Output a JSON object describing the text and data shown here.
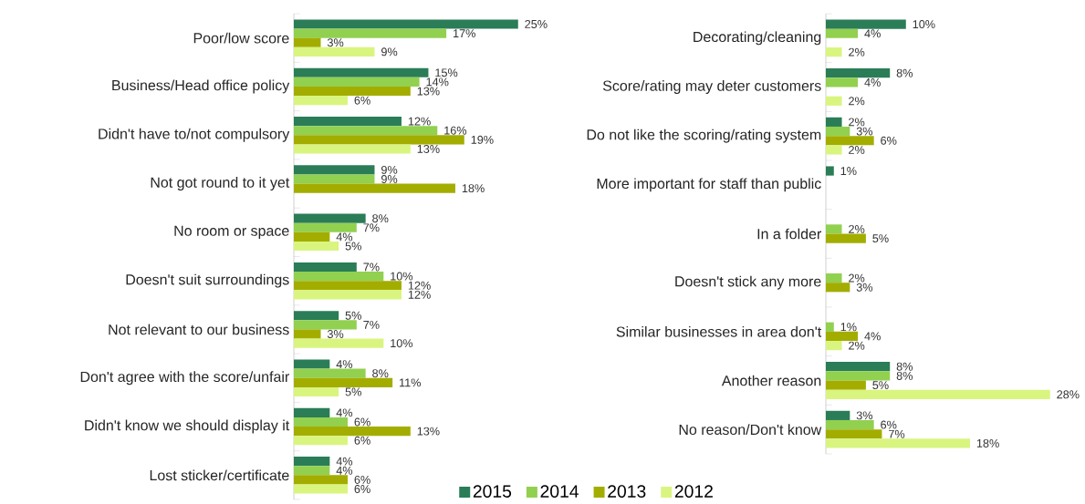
{
  "chart_data": [
    {
      "type": "bar",
      "orientation": "horizontal",
      "legend": "bottom",
      "categories": [
        "Poor/low score",
        "Business/Head office policy",
        "Didn't have to/not compulsory",
        "Not got round to it yet",
        "No room or space",
        "Doesn't suit surroundings",
        "Not relevant to our business",
        "Don't agree with the score/unfair",
        "Didn't know we should display it",
        "Lost sticker/certificate"
      ],
      "series": [
        {
          "name": "2015",
          "color": "#2a7d57",
          "values": [
            25,
            15,
            12,
            9,
            8,
            7,
            5,
            4,
            4,
            4
          ],
          "value_labels": [
            "25%",
            "15%",
            "12%",
            "9%",
            "8%",
            "7%",
            "5%",
            "4%",
            "4%",
            "4%"
          ]
        },
        {
          "name": "2014",
          "color": "#92d050",
          "values": [
            17,
            14,
            16,
            9,
            7,
            10,
            7,
            8,
            6,
            4
          ],
          "value_labels": [
            "17%",
            "14%",
            "16%",
            "9%",
            "7%",
            "10%",
            "7%",
            "8%",
            "6%",
            "4%"
          ]
        },
        {
          "name": "2013",
          "color": "#a3ad00",
          "values": [
            3,
            13,
            19,
            18,
            4,
            12,
            3,
            11,
            13,
            6
          ],
          "value_labels": [
            "3%",
            "13%",
            "19%",
            "18%",
            "4%",
            "12%",
            "3%",
            "11%",
            "13%",
            "6%"
          ]
        },
        {
          "name": "2012",
          "color": "#d9f57f",
          "values": [
            9,
            6,
            13,
            null,
            5,
            12,
            10,
            5,
            6,
            6
          ],
          "value_labels": [
            "9%",
            "6%",
            "13%",
            null,
            "5%",
            "12%",
            "10%",
            "5%",
            "6%",
            "6%"
          ]
        }
      ]
    },
    {
      "type": "bar",
      "orientation": "horizontal",
      "categories": [
        "Decorating/cleaning",
        "Score/rating may deter customers",
        "Do not like the scoring/rating system",
        "More important for staff than public",
        "In a folder",
        "Doesn't stick any more",
        "Similar businesses in area don't",
        "Another reason",
        "No reason/Don't know"
      ],
      "series": [
        {
          "color": "#2a7d57",
          "values": [
            10,
            8,
            2,
            1,
            null,
            null,
            null,
            8,
            3
          ],
          "value_labels": [
            "10%",
            "8%",
            "2%",
            "1%",
            null,
            null,
            null,
            "8%",
            "3%"
          ]
        },
        {
          "color": "#92d050",
          "values": [
            4,
            4,
            3,
            null,
            2,
            2,
            1,
            8,
            6
          ],
          "value_labels": [
            "4%",
            "4%",
            "3%",
            null,
            "2%",
            "2%",
            "1%",
            "8%",
            "6%"
          ]
        },
        {
          "color": "#a3ad00",
          "values": [
            null,
            null,
            6,
            null,
            5,
            3,
            4,
            5,
            7
          ],
          "value_labels": [
            null,
            null,
            "6%",
            null,
            "5%",
            "3%",
            "4%",
            "5%",
            "7%"
          ]
        },
        {
          "color": "#d9f57f",
          "values": [
            2,
            2,
            2,
            null,
            null,
            null,
            2,
            28,
            18
          ],
          "value_labels": [
            "2%",
            "2%",
            "2%",
            null,
            null,
            null,
            "2%",
            "28%",
            "18%"
          ]
        }
      ]
    }
  ]
}
